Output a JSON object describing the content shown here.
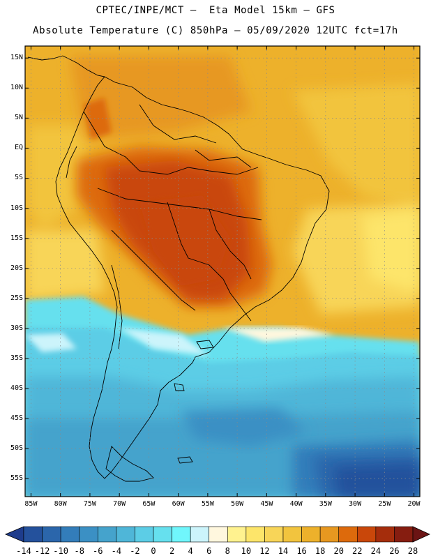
{
  "title": {
    "line1": "CPTEC/INPE/MCT –  Eta Model 15km – GFS",
    "line2": "Absolute Temperature (C) 850hPa – 05/09/2020 12UTC fct=17h"
  },
  "map": {
    "region": "South America",
    "lat_labels": [
      "15N",
      "10N",
      "5N",
      "EQ",
      "5S",
      "10S",
      "15S",
      "20S",
      "25S",
      "30S",
      "35S",
      "40S",
      "45S",
      "50S",
      "55S"
    ],
    "lat_values": [
      15,
      10,
      5,
      0,
      -5,
      -10,
      -15,
      -20,
      -25,
      -30,
      -35,
      -40,
      -45,
      -50,
      -55
    ],
    "lon_labels": [
      "85W",
      "80W",
      "75W",
      "70W",
      "65W",
      "60W",
      "55W",
      "50W",
      "45W",
      "40W",
      "35W",
      "30W",
      "25W",
      "20W"
    ],
    "lon_values": [
      -85,
      -80,
      -75,
      -70,
      -65,
      -60,
      -55,
      -50,
      -45,
      -40,
      -35,
      -30,
      -25,
      -20
    ],
    "lon_range": [
      -86,
      -19
    ],
    "lat_range": [
      -58,
      17
    ]
  },
  "colorbar": {
    "labels": [
      "-14",
      "-12",
      "-10",
      "-8",
      "-6",
      "-4",
      "-2",
      "0",
      "2",
      "4",
      "6",
      "8",
      "10",
      "12",
      "14",
      "16",
      "18",
      "20",
      "22",
      "24",
      "26",
      "28"
    ],
    "colors": [
      "#1e3c8c",
      "#24519c",
      "#2b66ab",
      "#337dba",
      "#3b90c4",
      "#45a3cc",
      "#4fb6d8",
      "#5ccde6",
      "#66e0ee",
      "#70f6fc",
      "#ccf4fb",
      "#fff7de",
      "#fff28f",
      "#fde56a",
      "#f8d558",
      "#f2c43e",
      "#edb12b",
      "#e79820",
      "#dd6a0c",
      "#c9470a",
      "#a52d0c",
      "#861d10",
      "#6b1414"
    ]
  }
}
